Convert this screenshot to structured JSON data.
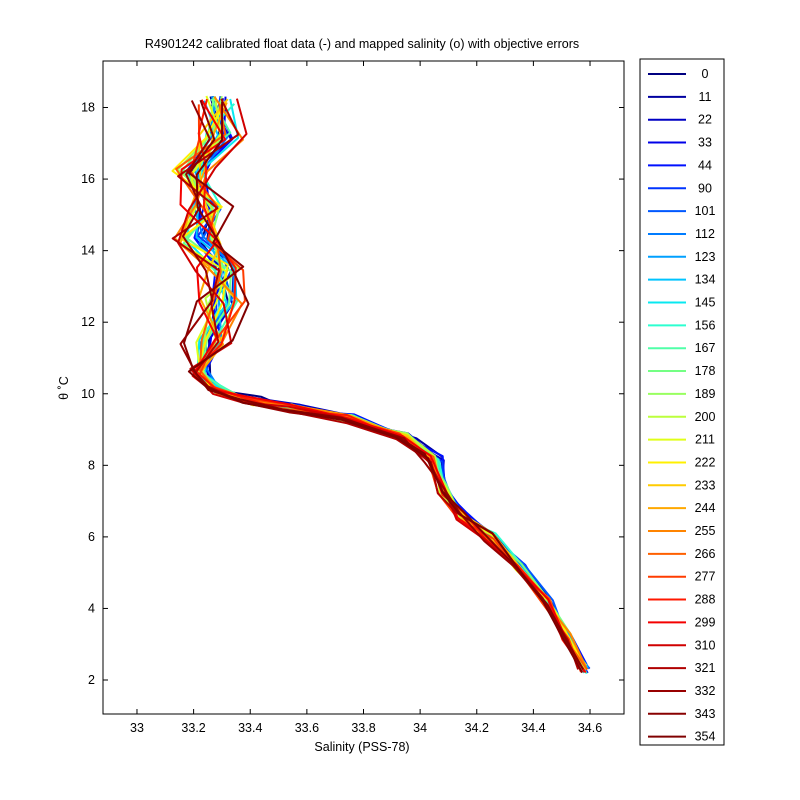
{
  "chart_data": {
    "type": "line",
    "title": "R4901242 calibrated float data (-) and mapped salinity (o) with objective errors",
    "xlabel": "Salinity (PSS-78)",
    "ylabel": "θ ˚C",
    "xlim": [
      32.88,
      34.72
    ],
    "ylim": [
      1.05,
      19.3
    ],
    "xticks": [
      "33",
      "33.2",
      "33.4",
      "33.6",
      "33.8",
      "34",
      "34.2",
      "34.4",
      "34.6"
    ],
    "yticks": [
      "2",
      "4",
      "6",
      "8",
      "10",
      "12",
      "14",
      "16",
      "18"
    ],
    "grid": false,
    "legend_position": "outside-right",
    "legend_entries": [
      "0",
      "11",
      "22",
      "33",
      "44",
      "90",
      "101",
      "112",
      "123",
      "134",
      "145",
      "156",
      "167",
      "178",
      "189",
      "200",
      "211",
      "222",
      "233",
      "244",
      "255",
      "266",
      "277",
      "288",
      "299",
      "310",
      "321",
      "332",
      "343",
      "354"
    ],
    "series_colors": [
      "#000080",
      "#0000a0",
      "#0000c4",
      "#0000e8",
      "#0010ff",
      "#0034ff",
      "#0058ff",
      "#007cff",
      "#00a0ff",
      "#00c4ff",
      "#08e8f0",
      "#2cffd0",
      "#50ffa8",
      "#74ff84",
      "#98ff60",
      "#bcff3c",
      "#e0ff18",
      "#fff000",
      "#ffcc00",
      "#ffa800",
      "#ff8400",
      "#ff6000",
      "#ff3c00",
      "#ff1800",
      "#f40000",
      "#d00000",
      "#b00000",
      "#980000",
      "#880000",
      "#800000"
    ],
    "profile_shape": [
      [
        34.58,
        2.3
      ],
      [
        34.52,
        3.2
      ],
      [
        34.45,
        4.2
      ],
      [
        34.35,
        5.2
      ],
      [
        34.25,
        6.0
      ],
      [
        34.15,
        6.6
      ],
      [
        34.08,
        7.3
      ],
      [
        34.05,
        8.2
      ],
      [
        33.95,
        8.8
      ],
      [
        33.75,
        9.3
      ],
      [
        33.55,
        9.6
      ],
      [
        33.4,
        9.8
      ],
      [
        33.28,
        10.1
      ],
      [
        33.22,
        10.6
      ],
      [
        33.25,
        11.5
      ],
      [
        33.3,
        12.6
      ],
      [
        33.3,
        13.5
      ],
      [
        33.22,
        14.3
      ],
      [
        33.25,
        15.2
      ],
      [
        33.2,
        16.2
      ],
      [
        33.3,
        17.2
      ],
      [
        33.28,
        18.2
      ]
    ]
  }
}
